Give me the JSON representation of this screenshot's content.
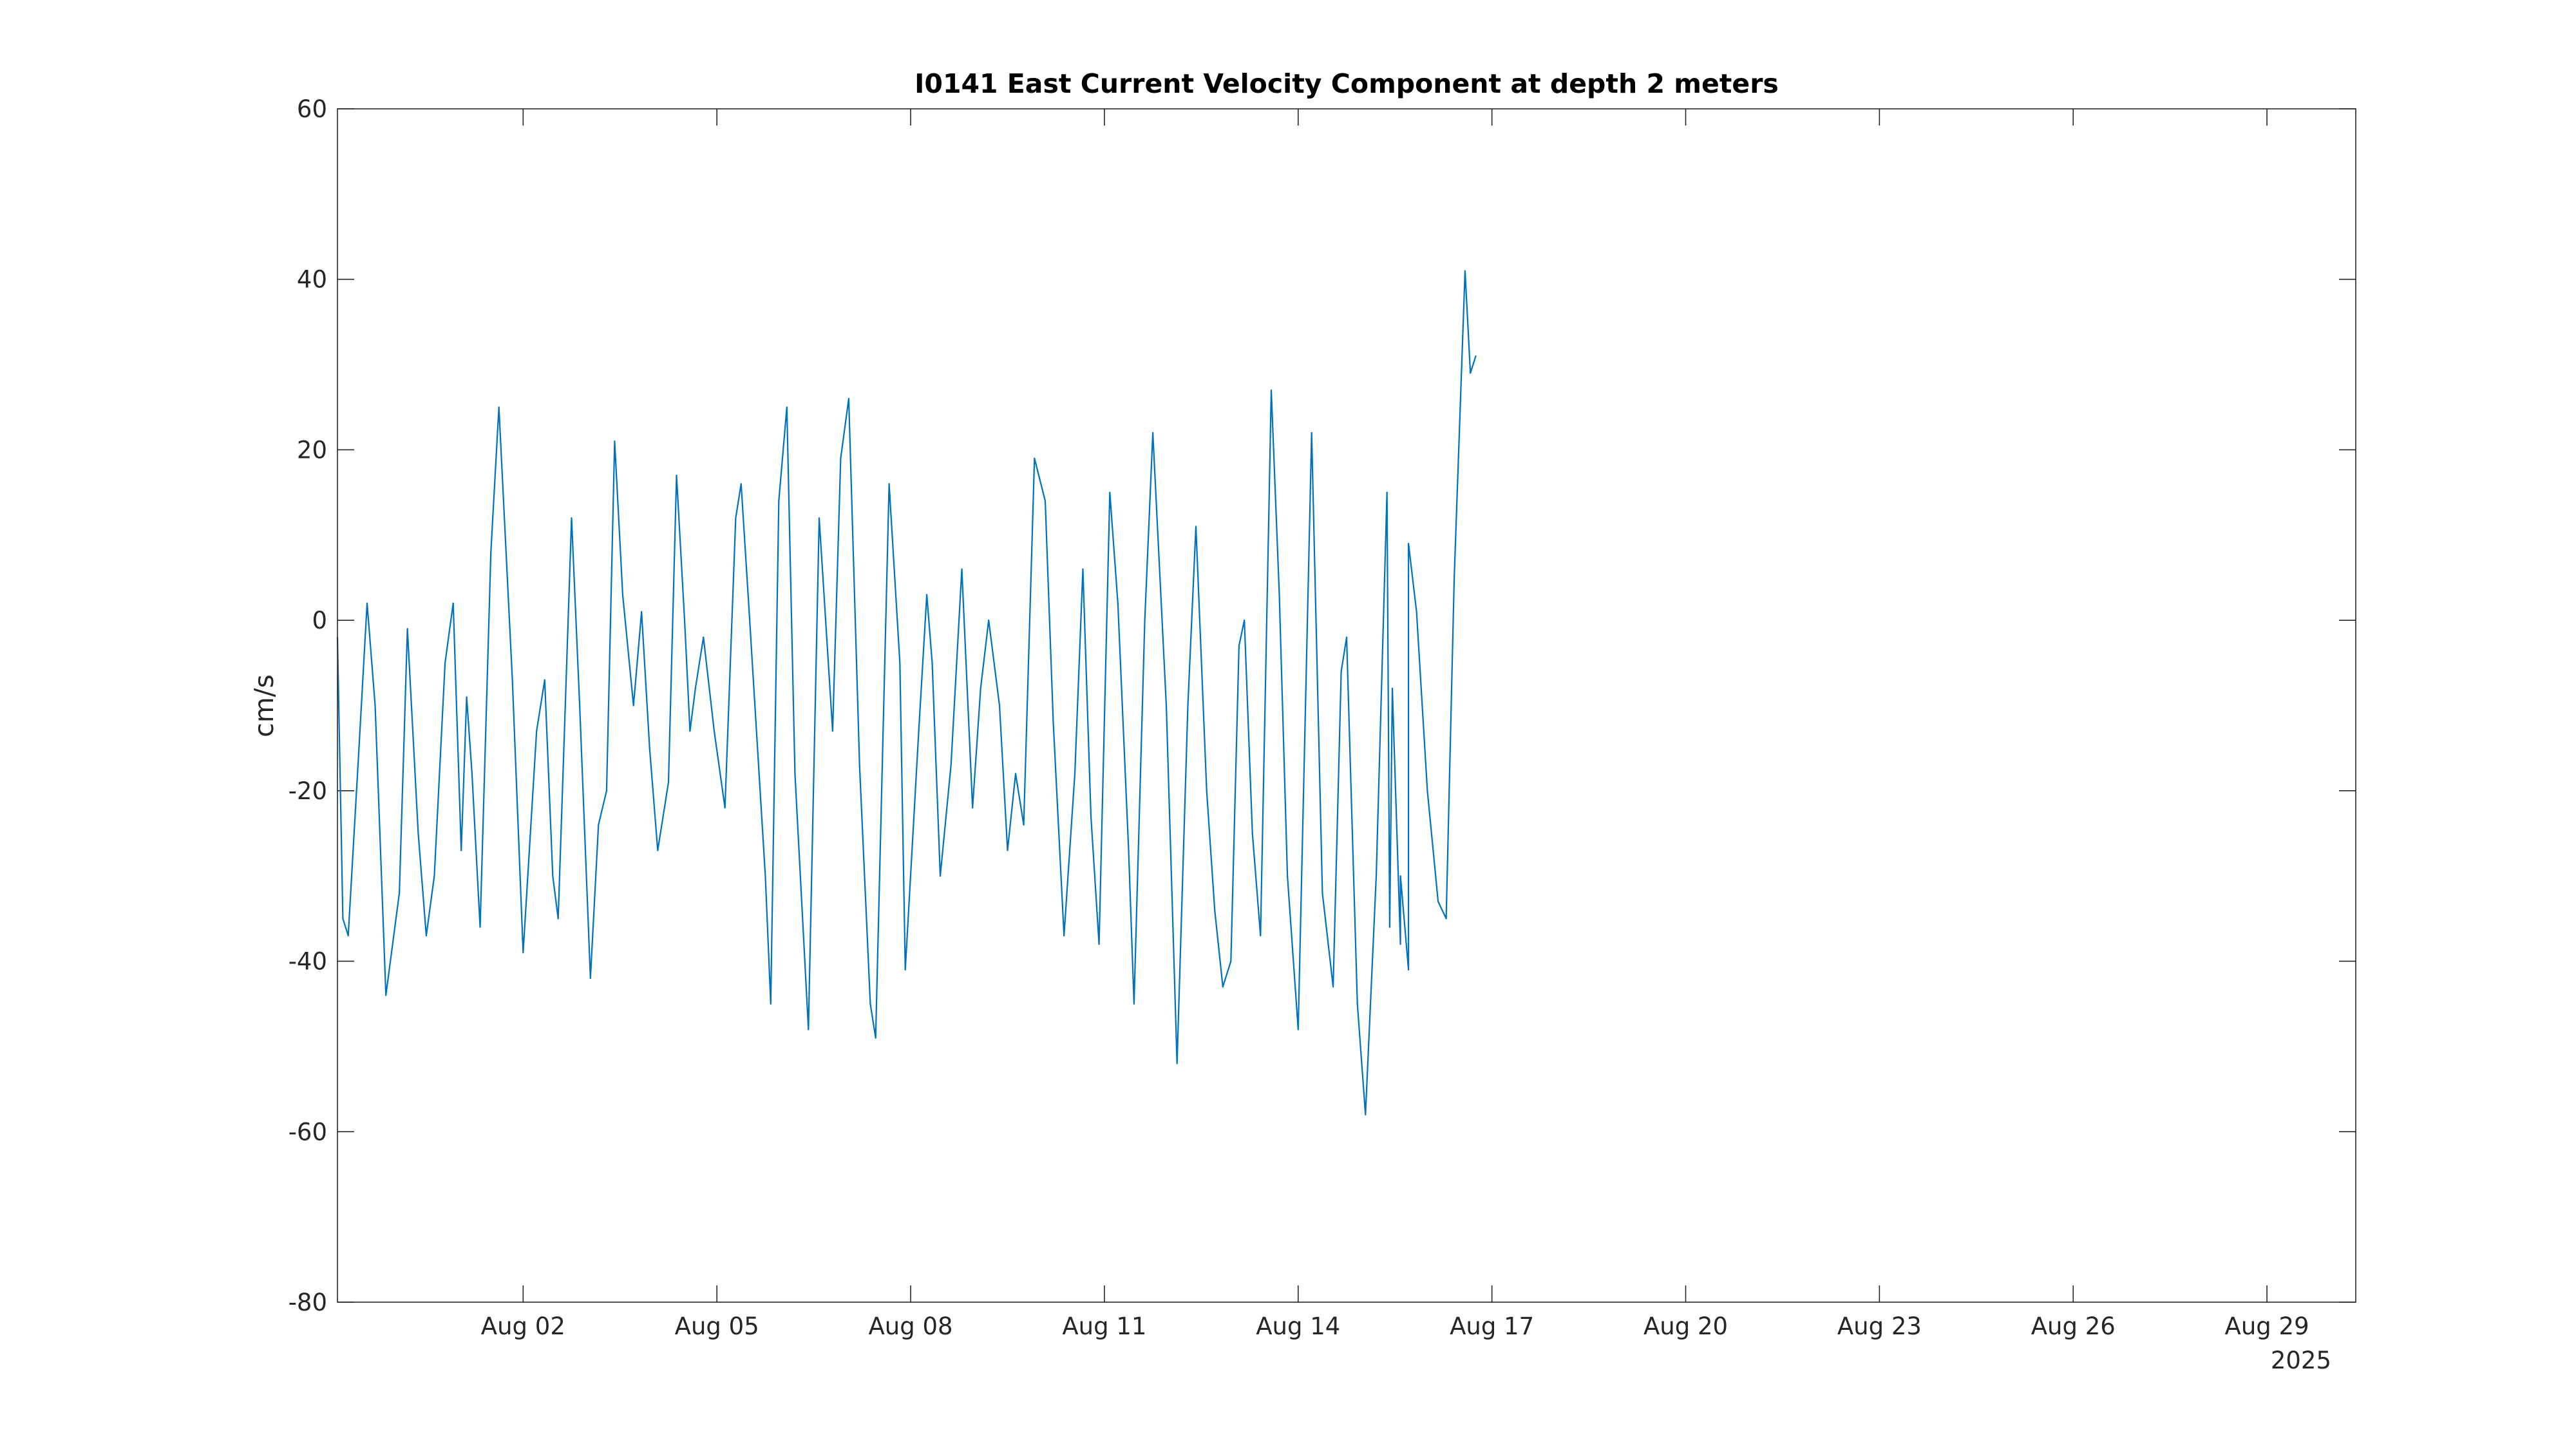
{
  "chart_data": {
    "type": "line",
    "title": "I0141 East Current Velocity Component at depth 2 meters",
    "xlabel": "",
    "ylabel": "cm/s",
    "x_unit": "date",
    "year_label": "2025",
    "xlim": [
      "2025-07-30T03:00",
      "2025-08-30T09:00"
    ],
    "ylim": [
      -80,
      60
    ],
    "yticks": [
      60,
      40,
      20,
      0,
      -20,
      -40,
      -60,
      -80
    ],
    "xticks": [
      {
        "date": "2025-08-02",
        "label": "Aug 02"
      },
      {
        "date": "2025-08-05",
        "label": "Aug 05"
      },
      {
        "date": "2025-08-08",
        "label": "Aug 08"
      },
      {
        "date": "2025-08-11",
        "label": "Aug 11"
      },
      {
        "date": "2025-08-14",
        "label": "Aug 14"
      },
      {
        "date": "2025-08-17",
        "label": "Aug 17"
      },
      {
        "date": "2025-08-20",
        "label": "Aug 20"
      },
      {
        "date": "2025-08-23",
        "label": "Aug 23"
      },
      {
        "date": "2025-08-26",
        "label": "Aug 26"
      },
      {
        "date": "2025-08-29",
        "label": "Aug 29"
      }
    ],
    "grid": false,
    "line_color": "#0072BD",
    "series": [
      {
        "values": [
          [
            "2025-07-30T03:00",
            -2
          ],
          [
            "2025-07-30T05:00",
            -35
          ],
          [
            "2025-07-30T07:00",
            -37
          ],
          [
            "2025-07-30T11:00",
            -15
          ],
          [
            "2025-07-30T14:00",
            2
          ],
          [
            "2025-07-30T17:00",
            -10
          ],
          [
            "2025-07-30T21:00",
            -44
          ],
          [
            "2025-07-31T02:00",
            -32
          ],
          [
            "2025-07-31T05:00",
            -1
          ],
          [
            "2025-07-31T09:00",
            -25
          ],
          [
            "2025-07-31T12:00",
            -37
          ],
          [
            "2025-07-31T15:00",
            -30
          ],
          [
            "2025-07-31T19:00",
            -5
          ],
          [
            "2025-07-31T22:00",
            2
          ],
          [
            "2025-08-01T01:00",
            -27
          ],
          [
            "2025-08-01T03:00",
            -9
          ],
          [
            "2025-08-01T05:00",
            -18
          ],
          [
            "2025-08-01T08:00",
            -36
          ],
          [
            "2025-08-01T12:00",
            8
          ],
          [
            "2025-08-01T15:00",
            25
          ],
          [
            "2025-08-01T20:00",
            -7
          ],
          [
            "2025-08-02T00:00",
            -39
          ],
          [
            "2025-08-02T05:00",
            -13
          ],
          [
            "2025-08-02T08:00",
            -7
          ],
          [
            "2025-08-02T11:00",
            -30
          ],
          [
            "2025-08-02T13:00",
            -35
          ],
          [
            "2025-08-02T18:00",
            12
          ],
          [
            "2025-08-02T21:00",
            -10
          ],
          [
            "2025-08-03T01:00",
            -42
          ],
          [
            "2025-08-03T04:00",
            -24
          ],
          [
            "2025-08-03T07:00",
            -20
          ],
          [
            "2025-08-03T10:00",
            21
          ],
          [
            "2025-08-03T13:00",
            3
          ],
          [
            "2025-08-03T17:00",
            -10
          ],
          [
            "2025-08-03T20:00",
            1
          ],
          [
            "2025-08-03T23:00",
            -15
          ],
          [
            "2025-08-04T02:00",
            -27
          ],
          [
            "2025-08-04T06:00",
            -19
          ],
          [
            "2025-08-04T09:00",
            17
          ],
          [
            "2025-08-04T12:00",
            0
          ],
          [
            "2025-08-04T14:00",
            -13
          ],
          [
            "2025-08-04T16:00",
            -8
          ],
          [
            "2025-08-04T19:00",
            -2
          ],
          [
            "2025-08-04T23:00",
            -13
          ],
          [
            "2025-08-05T03:00",
            -22
          ],
          [
            "2025-08-05T07:00",
            12
          ],
          [
            "2025-08-05T09:00",
            16
          ],
          [
            "2025-08-05T12:00",
            1
          ],
          [
            "2025-08-05T18:00",
            -30
          ],
          [
            "2025-08-05T20:00",
            -45
          ],
          [
            "2025-08-05T23:00",
            14
          ],
          [
            "2025-08-06T02:00",
            25
          ],
          [
            "2025-08-06T05:00",
            -18
          ],
          [
            "2025-08-06T10:00",
            -48
          ],
          [
            "2025-08-06T14:00",
            12
          ],
          [
            "2025-08-06T19:00",
            -13
          ],
          [
            "2025-08-06T22:00",
            19
          ],
          [
            "2025-08-07T01:00",
            26
          ],
          [
            "2025-08-07T05:00",
            -17
          ],
          [
            "2025-08-07T09:00",
            -45
          ],
          [
            "2025-08-07T11:00",
            -49
          ],
          [
            "2025-08-07T16:00",
            16
          ],
          [
            "2025-08-07T20:00",
            -5
          ],
          [
            "2025-08-07T22:00",
            -41
          ],
          [
            "2025-08-08T03:00",
            -13
          ],
          [
            "2025-08-08T06:00",
            3
          ],
          [
            "2025-08-08T08:00",
            -5
          ],
          [
            "2025-08-08T11:00",
            -30
          ],
          [
            "2025-08-08T15:00",
            -17
          ],
          [
            "2025-08-08T19:00",
            6
          ],
          [
            "2025-08-08T23:00",
            -22
          ],
          [
            "2025-08-09T02:00",
            -8
          ],
          [
            "2025-08-09T05:00",
            0
          ],
          [
            "2025-08-09T09:00",
            -10
          ],
          [
            "2025-08-09T12:00",
            -27
          ],
          [
            "2025-08-09T15:00",
            -18
          ],
          [
            "2025-08-09T18:00",
            -24
          ],
          [
            "2025-08-09T22:00",
            19
          ],
          [
            "2025-08-10T02:00",
            14
          ],
          [
            "2025-08-10T05:00",
            -12
          ],
          [
            "2025-08-10T09:00",
            -37
          ],
          [
            "2025-08-10T13:00",
            -18
          ],
          [
            "2025-08-10T16:00",
            6
          ],
          [
            "2025-08-10T19:00",
            -23
          ],
          [
            "2025-08-10T22:00",
            -38
          ],
          [
            "2025-08-11T02:00",
            15
          ],
          [
            "2025-08-11T05:00",
            2
          ],
          [
            "2025-08-11T09:00",
            -27
          ],
          [
            "2025-08-11T11:00",
            -45
          ],
          [
            "2025-08-11T15:00",
            0
          ],
          [
            "2025-08-11T18:00",
            22
          ],
          [
            "2025-08-11T23:00",
            -10
          ],
          [
            "2025-08-12T03:00",
            -52
          ],
          [
            "2025-08-12T07:00",
            -10
          ],
          [
            "2025-08-12T10:00",
            11
          ],
          [
            "2025-08-12T14:00",
            -20
          ],
          [
            "2025-08-12T17:00",
            -34
          ],
          [
            "2025-08-12T20:00",
            -43
          ],
          [
            "2025-08-12T23:00",
            -40
          ],
          [
            "2025-08-13T02:00",
            -3
          ],
          [
            "2025-08-13T04:00",
            0
          ],
          [
            "2025-08-13T07:00",
            -25
          ],
          [
            "2025-08-13T10:00",
            -37
          ],
          [
            "2025-08-13T14:00",
            27
          ],
          [
            "2025-08-13T17:00",
            3
          ],
          [
            "2025-08-13T20:00",
            -30
          ],
          [
            "2025-08-14T00:00",
            -48
          ],
          [
            "2025-08-14T05:00",
            22
          ],
          [
            "2025-08-14T09:00",
            -32
          ],
          [
            "2025-08-14T13:00",
            -43
          ],
          [
            "2025-08-14T16:00",
            -6
          ],
          [
            "2025-08-14T18:00",
            -2
          ],
          [
            "2025-08-14T22:00",
            -45
          ],
          [
            "2025-08-15T01:00",
            -58
          ],
          [
            "2025-08-15T05:00",
            -30
          ],
          [
            "2025-08-15T09:00",
            15
          ],
          [
            "2025-08-15T11:00",
            -8
          ],
          [
            "2025-08-15T14:00",
            -38
          ],
          [
            "2025-08-15T17:00",
            -41
          ],
          [
            "2025-08-15T20:00",
            1
          ],
          [
            "2025-08-16T00:00",
            -20
          ],
          [
            "2025-08-16T04:00",
            -33
          ],
          [
            "2025-08-16T07:00",
            -35
          ],
          [
            "2025-08-16T10:00",
            5
          ],
          [
            "2025-08-16T14:00",
            41
          ],
          [
            "2025-08-16T16:00",
            29
          ],
          [
            "2025-08-16T18:00",
            31
          ],
          [
            "2025-08-15T10:00",
            -36
          ],
          [
            "2025-08-15T14:00",
            -30
          ],
          [
            "2025-08-15T17:00",
            9
          ]
        ]
      }
    ]
  }
}
